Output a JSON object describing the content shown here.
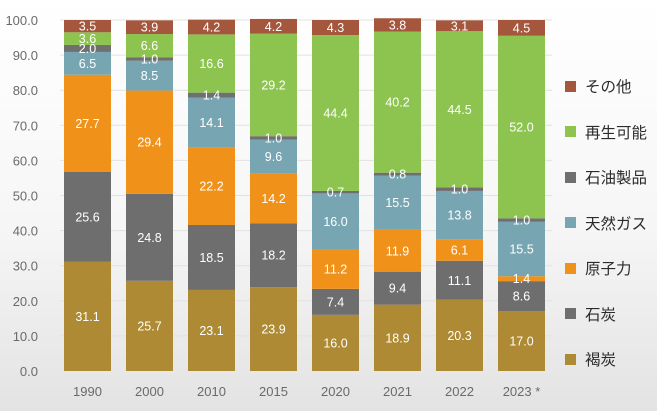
{
  "chart_data": {
    "type": "bar",
    "stacked": true,
    "title": "",
    "xlabel": "",
    "ylabel": "",
    "ylim": [
      0,
      100
    ],
    "yticks": [
      "0.0",
      "10.0",
      "20.0",
      "30.0",
      "40.0",
      "50.0",
      "60.0",
      "70.0",
      "80.0",
      "90.0",
      "100.0"
    ],
    "grid": true,
    "legend_position": "right",
    "categories": [
      "1990",
      "2000",
      "2010",
      "2015",
      "2020",
      "2021",
      "2022",
      "2023*"
    ],
    "series": [
      {
        "name": "褐炭",
        "color": "#AD8A33",
        "values": [
          31.1,
          25.7,
          23.1,
          23.9,
          16.0,
          18.9,
          20.3,
          17.0
        ]
      },
      {
        "name": "石炭",
        "color": "#6E6E6E",
        "values": [
          25.6,
          24.8,
          18.5,
          18.2,
          7.4,
          9.4,
          11.1,
          8.6
        ]
      },
      {
        "name": "原子力",
        "color": "#F0921A",
        "values": [
          27.7,
          29.4,
          22.2,
          14.2,
          11.2,
          11.9,
          6.1,
          1.4
        ]
      },
      {
        "name": "天然ガス",
        "color": "#77A6B2",
        "values": [
          6.5,
          8.5,
          14.1,
          9.6,
          16.0,
          15.5,
          13.8,
          15.5
        ]
      },
      {
        "name": "石油製品",
        "color": "#6F6F6F",
        "values": [
          2.0,
          1.0,
          1.4,
          1.0,
          0.7,
          0.8,
          1.0,
          1.0
        ]
      },
      {
        "name": "再生可能",
        "color": "#8CC44F",
        "values": [
          3.6,
          6.6,
          16.6,
          29.2,
          44.4,
          40.2,
          44.5,
          52.0
        ]
      },
      {
        "name": "その他",
        "color": "#A5573E",
        "values": [
          3.5,
          3.9,
          4.2,
          4.2,
          4.3,
          3.8,
          3.1,
          4.5
        ]
      }
    ],
    "legend_order": [
      "その他",
      "再生可能",
      "石油製品",
      "天然ガス",
      "原子力",
      "石炭",
      "褐炭"
    ]
  }
}
